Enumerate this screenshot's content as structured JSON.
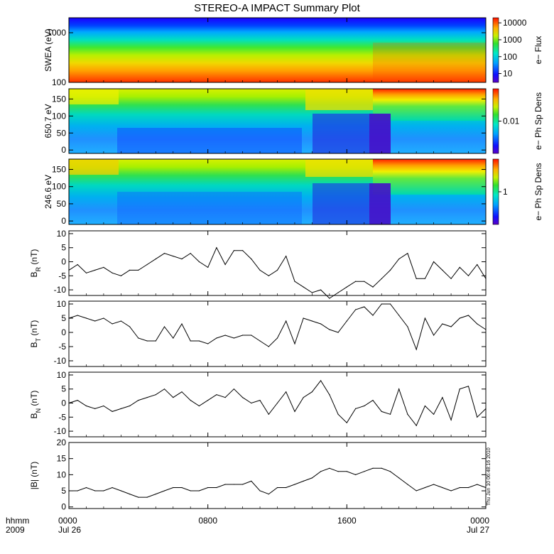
{
  "title": "STEREO-A IMPACT Summary Plot",
  "timestamp_text": "Thu Jun 10 06:48:16 2010",
  "time_axis": {
    "row_label_1": "hhmm",
    "row_label_2": "2009",
    "ticks": [
      {
        "t": 0,
        "hhmm": "0000",
        "date": "Jul 26"
      },
      {
        "t": 8,
        "hhmm": "0800",
        "date": ""
      },
      {
        "t": 16,
        "hhmm": "1600",
        "date": ""
      },
      {
        "t": 24,
        "hhmm": "0000",
        "date": "Jul 27"
      }
    ],
    "range_hours": [
      0,
      24
    ]
  },
  "spectrogram_panels": [
    {
      "id": "swea",
      "ylabel": "SWEA (eV)",
      "scale": "log",
      "yrange": [
        100,
        2000
      ],
      "yticks": [
        {
          "v": 1000,
          "label": "1000"
        },
        {
          "v": 100,
          "label": "100"
        }
      ],
      "colorbar": {
        "label": "e− Flux",
        "scale": "log",
        "ticks": [
          {
            "v": 10000,
            "label": "10000"
          },
          {
            "v": 1000,
            "label": "1000"
          },
          {
            "v": 100,
            "label": "100"
          },
          {
            "v": 10,
            "label": "10"
          }
        ],
        "range": [
          3,
          20000
        ]
      }
    },
    {
      "id": "pad650",
      "ylabel": "650.7 eV",
      "scale": "linear",
      "yrange": [
        -10,
        180
      ],
      "yticks": [
        {
          "v": 150,
          "label": "150"
        },
        {
          "v": 100,
          "label": "100"
        },
        {
          "v": 50,
          "label": "50"
        },
        {
          "v": 0,
          "label": "0"
        }
      ],
      "colorbar": {
        "label": "e− Ph Sp Dens",
        "scale": "log",
        "ticks": [
          {
            "v": 0.01,
            "label": "0.01"
          }
        ],
        "range": [
          0.002,
          0.05
        ]
      }
    },
    {
      "id": "pad246",
      "ylabel": "246.6 eV",
      "scale": "linear",
      "yrange": [
        -10,
        180
      ],
      "yticks": [
        {
          "v": 150,
          "label": "150"
        },
        {
          "v": 100,
          "label": "100"
        },
        {
          "v": 50,
          "label": "50"
        },
        {
          "v": 0,
          "label": "0"
        }
      ],
      "colorbar": {
        "label": "e− Ph Sp Dens",
        "scale": "log",
        "ticks": [
          {
            "v": 1,
            "label": "1"
          }
        ],
        "range": [
          0.2,
          5
        ]
      }
    }
  ],
  "chart_data": [
    {
      "type": "line",
      "id": "BR",
      "ylabel": "B",
      "ylabel_sub": "R",
      "ylabel_unit": "(nT)",
      "ylim": [
        -12,
        11
      ],
      "yticks": [
        10,
        5,
        0,
        -5,
        -10
      ],
      "x": [
        0,
        0.5,
        1,
        1.5,
        2,
        2.5,
        3,
        3.5,
        4,
        4.5,
        5,
        5.5,
        6,
        6.5,
        7,
        7.5,
        8,
        8.5,
        9,
        9.5,
        10,
        10.5,
        11,
        11.5,
        12,
        12.5,
        13,
        13.5,
        14,
        14.5,
        15,
        15.5,
        16,
        16.5,
        17,
        17.5,
        18,
        18.5,
        19,
        19.5,
        20,
        20.5,
        21,
        21.5,
        22,
        22.5,
        23,
        23.5,
        24
      ],
      "values": [
        -3,
        -1,
        -4,
        -3,
        -2,
        -4,
        -5,
        -3,
        -3,
        -1,
        1,
        3,
        2,
        1,
        3,
        0,
        -2,
        5,
        -1,
        4,
        4,
        1,
        -3,
        -5,
        -3,
        2,
        -7,
        -9,
        -11,
        -10,
        -13,
        -11,
        -9,
        -7,
        -7,
        -9,
        -6,
        -3,
        1,
        3,
        -6,
        -6,
        0,
        -3,
        -6,
        -2,
        -5,
        -1,
        -6
      ]
    },
    {
      "type": "line",
      "id": "BT",
      "ylabel": "B",
      "ylabel_sub": "T",
      "ylabel_unit": "(nT)",
      "ylim": [
        -12,
        11
      ],
      "yticks": [
        10,
        5,
        0,
        -5,
        -10
      ],
      "x": [
        0,
        0.5,
        1,
        1.5,
        2,
        2.5,
        3,
        3.5,
        4,
        4.5,
        5,
        5.5,
        6,
        6.5,
        7,
        7.5,
        8,
        8.5,
        9,
        9.5,
        10,
        10.5,
        11,
        11.5,
        12,
        12.5,
        13,
        13.5,
        14,
        14.5,
        15,
        15.5,
        16,
        16.5,
        17,
        17.5,
        18,
        18.5,
        19,
        19.5,
        20,
        20.5,
        21,
        21.5,
        22,
        22.5,
        23,
        23.5,
        24
      ],
      "values": [
        5,
        6,
        5,
        4,
        5,
        3,
        4,
        2,
        -2,
        -3,
        -3,
        2,
        -2,
        3,
        -3,
        -3,
        -4,
        -2,
        -1,
        -2,
        -1,
        -1,
        -3,
        -5,
        -2,
        4,
        -4,
        5,
        4,
        3,
        1,
        0,
        4,
        8,
        9,
        6,
        10,
        10,
        6,
        2,
        -6,
        5,
        -1,
        3,
        2,
        5,
        6,
        3,
        1
      ]
    },
    {
      "type": "line",
      "id": "BN",
      "ylabel": "B",
      "ylabel_sub": "N",
      "ylabel_unit": "(nT)",
      "ylim": [
        -12,
        11
      ],
      "yticks": [
        10,
        5,
        0,
        -5,
        -10
      ],
      "x": [
        0,
        0.5,
        1,
        1.5,
        2,
        2.5,
        3,
        3.5,
        4,
        4.5,
        5,
        5.5,
        6,
        6.5,
        7,
        7.5,
        8,
        8.5,
        9,
        9.5,
        10,
        10.5,
        11,
        11.5,
        12,
        12.5,
        13,
        13.5,
        14,
        14.5,
        15,
        15.5,
        16,
        16.5,
        17,
        17.5,
        18,
        18.5,
        19,
        19.5,
        20,
        20.5,
        21,
        21.5,
        22,
        22.5,
        23,
        23.5,
        24
      ],
      "values": [
        0,
        1,
        -1,
        -2,
        -1,
        -3,
        -2,
        -1,
        1,
        2,
        3,
        5,
        2,
        4,
        1,
        -1,
        1,
        3,
        2,
        5,
        2,
        0,
        1,
        -4,
        0,
        4,
        -3,
        2,
        4,
        8,
        3,
        -4,
        -7,
        -2,
        -1,
        1,
        -3,
        -4,
        5,
        -4,
        -8,
        -1,
        -4,
        2,
        -6,
        5,
        6,
        -5,
        -2
      ]
    },
    {
      "type": "line",
      "id": "Bmag",
      "ylabel": "|B|",
      "ylabel_sub": "",
      "ylabel_unit": "(nT)",
      "ylim": [
        -0.5,
        20
      ],
      "yticks": [
        20,
        15,
        10,
        5,
        0
      ],
      "x": [
        0,
        0.5,
        1,
        1.5,
        2,
        2.5,
        3,
        3.5,
        4,
        4.5,
        5,
        5.5,
        6,
        6.5,
        7,
        7.5,
        8,
        8.5,
        9,
        9.5,
        10,
        10.5,
        11,
        11.5,
        12,
        12.5,
        13,
        13.5,
        14,
        14.5,
        15,
        15.5,
        16,
        16.5,
        17,
        17.5,
        18,
        18.5,
        19,
        19.5,
        20,
        20.5,
        21,
        21.5,
        22,
        22.5,
        23,
        23.5,
        24
      ],
      "values": [
        5,
        5,
        6,
        5,
        5,
        6,
        5,
        4,
        3,
        3,
        4,
        5,
        6,
        6,
        5,
        5,
        6,
        6,
        7,
        7,
        7,
        8,
        5,
        4,
        6,
        6,
        7,
        8,
        9,
        11,
        12,
        11,
        11,
        10,
        11,
        12,
        12,
        11,
        9,
        7,
        5,
        6,
        7,
        6,
        5,
        6,
        6,
        7,
        6
      ]
    }
  ]
}
